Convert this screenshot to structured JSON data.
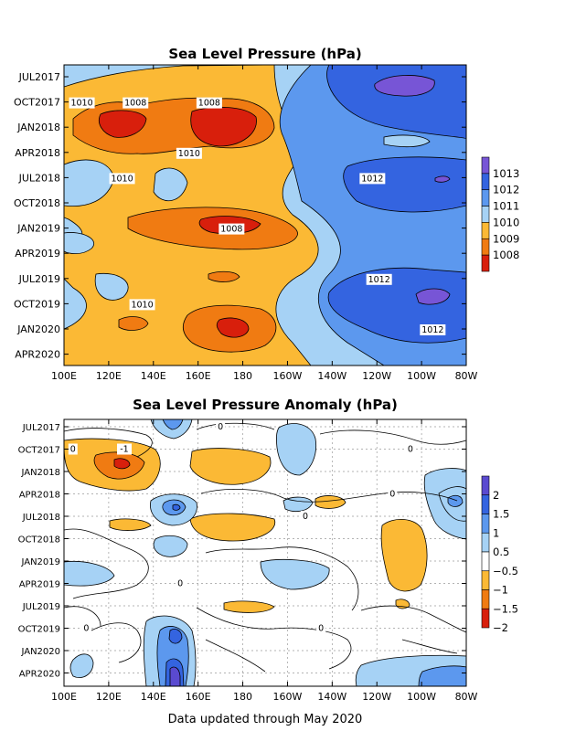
{
  "footer": "Data updated through May 2020",
  "chart_data": [
    {
      "type": "heatmap",
      "subtype": "filled-contour (Hovmoller)",
      "title": "Sea Level Pressure (hPa)",
      "x_ticks": [
        "100E",
        "120E",
        "140E",
        "160E",
        "180",
        "160W",
        "140W",
        "120W",
        "100W",
        "80W"
      ],
      "x_values_deg_east": [
        100,
        120,
        140,
        160,
        180,
        200,
        220,
        240,
        260,
        280
      ],
      "y_ticks": [
        "JUL2017",
        "OCT2017",
        "JAN2018",
        "APR2018",
        "JUL2018",
        "OCT2018",
        "JAN2019",
        "APR2019",
        "JUL2019",
        "OCT2019",
        "JAN2020",
        "APR2020"
      ],
      "y_direction": "time increases downward",
      "legend_levels": [
        "1013",
        "1012",
        "1011",
        "1010",
        "1009",
        "1008"
      ],
      "legend_colors": [
        "#7755d6",
        "#3464e0",
        "#5c98ee",
        "#a6d2f5",
        "#fbb935",
        "#f07b12",
        "#d81f0c"
      ],
      "contour_labels": [
        {
          "text": "1010",
          "x_deg": 108,
          "time": "OCT2017"
        },
        {
          "text": "1008",
          "x_deg": 132,
          "time": "OCT2017"
        },
        {
          "text": "1008",
          "x_deg": 165,
          "time": "OCT2017"
        },
        {
          "text": "1010",
          "x_deg": 156,
          "time": "APR2018"
        },
        {
          "text": "1010",
          "x_deg": 126,
          "time": "JUL2018"
        },
        {
          "text": "1012",
          "x_deg": 238,
          "time": "JUL2018"
        },
        {
          "text": "1008",
          "x_deg": 175,
          "time": "JAN2019"
        },
        {
          "text": "1012",
          "x_deg": 241,
          "time": "JUL2019"
        },
        {
          "text": "1010",
          "x_deg": 135,
          "time": "OCT2019"
        },
        {
          "text": "1012",
          "x_deg": 265,
          "time": "JAN2020"
        }
      ]
    },
    {
      "type": "heatmap",
      "subtype": "filled-contour anomaly (Hovmoller)",
      "title": "Sea Level Pressure Anomaly (hPa)",
      "x_ticks": [
        "100E",
        "120E",
        "140E",
        "160E",
        "180",
        "160W",
        "140W",
        "120W",
        "100W",
        "80W"
      ],
      "x_values_deg_east": [
        100,
        120,
        140,
        160,
        180,
        200,
        220,
        240,
        260,
        280
      ],
      "y_ticks": [
        "JUL2017",
        "OCT2017",
        "JAN2018",
        "APR2018",
        "JUL2018",
        "OCT2018",
        "JAN2019",
        "APR2019",
        "JUL2019",
        "OCT2019",
        "JAN2020",
        "APR2020"
      ],
      "y_direction": "time increases downward",
      "legend_levels": [
        "2",
        "1.5",
        "1",
        "0.5",
        "-0.5",
        "-1",
        "-1.5",
        "-2"
      ],
      "legend_colors": [
        "#5a4ad0",
        "#3464e0",
        "#5c98ee",
        "#a6d2f5",
        "#ffffff",
        "#fbb935",
        "#f07b12",
        "#d81f0c"
      ],
      "contour_labels": [
        {
          "text": "-1",
          "x_deg": 127,
          "time": "OCT2017"
        },
        {
          "text": "0",
          "x_deg": 104,
          "time": "OCT2017"
        },
        {
          "text": "0",
          "x_deg": 170,
          "time": "JUL2017"
        },
        {
          "text": "0",
          "x_deg": 255,
          "time": "OCT2017"
        },
        {
          "text": "0",
          "x_deg": 247,
          "time": "APR2018"
        },
        {
          "text": "0",
          "x_deg": 208,
          "time": "JUL2018"
        },
        {
          "text": "0",
          "x_deg": 152,
          "time": "APR2019"
        },
        {
          "text": "0",
          "x_deg": 215,
          "time": "OCT2019"
        },
        {
          "text": "0",
          "x_deg": 110,
          "time": "OCT2019"
        }
      ]
    }
  ]
}
